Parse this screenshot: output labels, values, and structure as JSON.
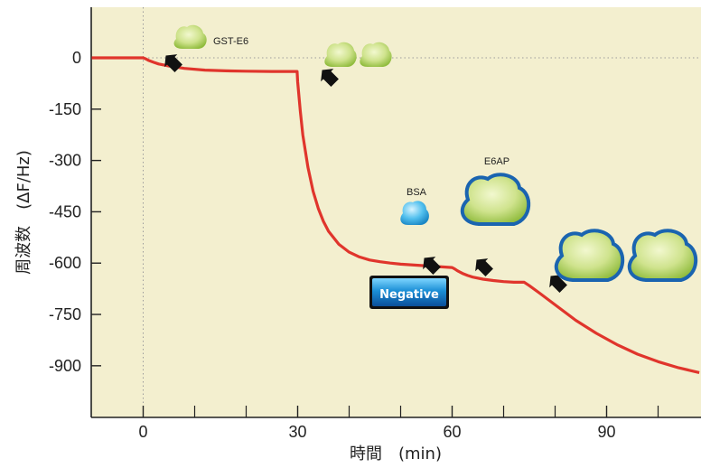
{
  "chart_data": {
    "type": "line",
    "xlabel": "時間　(min)",
    "ylabel": "周波数　(ΔF/Hz)",
    "xlim": [
      -10,
      108
    ],
    "ylim": [
      -1050,
      150
    ],
    "x_ticks": [
      0,
      30,
      60,
      90
    ],
    "x_minor_ticks": [
      10,
      20,
      40,
      50,
      70,
      80,
      100
    ],
    "y_ticks": [
      0,
      -150,
      -300,
      -450,
      -600,
      -750,
      -900
    ],
    "reference_lines": [
      {
        "axis": "y",
        "value": 0
      },
      {
        "axis": "x",
        "value": 0
      }
    ],
    "grid": false,
    "background_color": "#f3efcf",
    "series": [
      {
        "color": "#e0352c",
        "x": [
          -10,
          0,
          0.5,
          1,
          2,
          3,
          5,
          8,
          12,
          16,
          20,
          25,
          29.9,
          30,
          30.5,
          31,
          32,
          33,
          34,
          35,
          36,
          38,
          40,
          42,
          44,
          46,
          48,
          50,
          52,
          54,
          56,
          58,
          60,
          60.5,
          61,
          62,
          63,
          64,
          66,
          68,
          70,
          72,
          74,
          75,
          77,
          80,
          84,
          88,
          92,
          96,
          100,
          104,
          108
        ],
        "y": [
          0,
          0,
          -3,
          -7,
          -13,
          -18,
          -24,
          -31,
          -36,
          -38,
          -39,
          -40,
          -40,
          -70,
          -155,
          -225,
          -320,
          -390,
          -440,
          -478,
          -507,
          -545,
          -568,
          -582,
          -591,
          -596,
          -600,
          -603,
          -605,
          -607,
          -609,
          -611,
          -613,
          -617,
          -622,
          -630,
          -636,
          -641,
          -647,
          -651,
          -654,
          -656,
          -656,
          -666,
          -688,
          -722,
          -767,
          -805,
          -838,
          -866,
          -888,
          -906,
          -920
        ]
      }
    ],
    "annotations": [
      {
        "text": "GST-E6",
        "x": 0
      },
      {
        "text": "BSA",
        "x": 50
      },
      {
        "text": "E6AP",
        "x": 60
      },
      {
        "text": "Negative",
        "x": 50
      }
    ],
    "injection_arrows_x": [
      0,
      30,
      50,
      60,
      74
    ]
  }
}
